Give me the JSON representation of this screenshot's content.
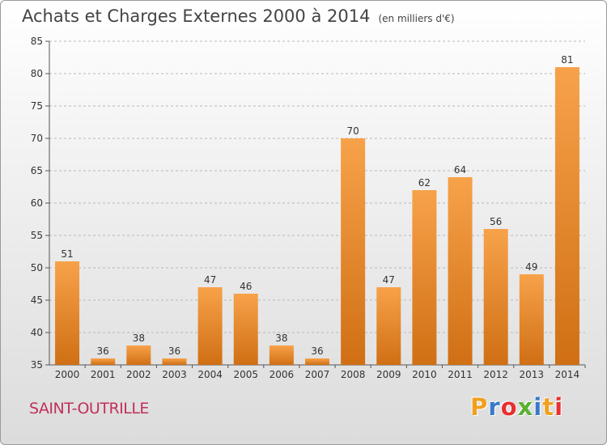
{
  "title": "Achats et Charges Externes 2000 à 2014",
  "unit": "(en milliers d'€)",
  "place": "SAINT-OUTRILLE",
  "logo": {
    "text": "Proxiti",
    "letters": [
      "P",
      "r",
      "o",
      "x",
      "i",
      "t",
      "i"
    ],
    "colors": [
      "#f0a020",
      "#3a78c8",
      "#e83030",
      "#5ab030",
      "#3a78c8",
      "#f0a020",
      "#e83030"
    ]
  },
  "colors": {
    "bar_top": "#f7a24a",
    "bar_bottom": "#d06f14",
    "grid": "#b8b8b8",
    "title": "#444444",
    "place": "#c0305a"
  },
  "chart_data": {
    "type": "bar",
    "title": "Achats et Charges Externes 2000 à 2014",
    "categories": [
      "2000",
      "2001",
      "2002",
      "2003",
      "2004",
      "2005",
      "2006",
      "2007",
      "2008",
      "2009",
      "2010",
      "2011",
      "2012",
      "2013",
      "2014"
    ],
    "values": [
      51,
      36,
      38,
      36,
      47,
      46,
      38,
      36,
      70,
      47,
      62,
      64,
      56,
      49,
      81
    ],
    "ylim": [
      35,
      85
    ],
    "yticks": [
      35,
      40,
      45,
      50,
      55,
      60,
      65,
      70,
      75,
      80,
      85
    ],
    "grid": true,
    "xlabel": "",
    "ylabel": ""
  }
}
